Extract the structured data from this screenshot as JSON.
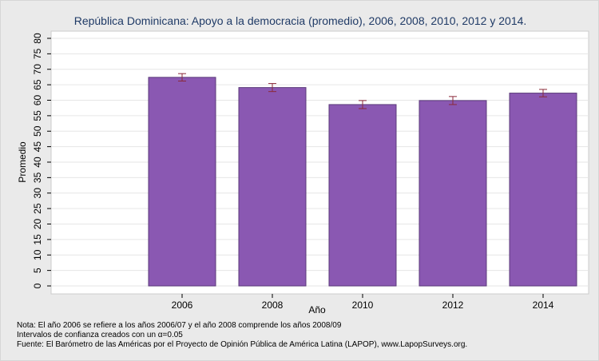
{
  "chart_data": {
    "type": "bar",
    "title": "República Dominicana: Apoyo a la democracia (promedio), 2006, 2008, 2010, 2012 y 2014.",
    "xlabel": "Año",
    "ylabel": "Promedio",
    "categories": [
      "2006",
      "2008",
      "2010",
      "2012",
      "2014"
    ],
    "values": [
      67.4,
      64.1,
      58.6,
      59.9,
      62.3
    ],
    "ci_low": [
      66.2,
      62.8,
      57.3,
      58.6,
      61.1
    ],
    "ci_high": [
      68.6,
      65.4,
      59.9,
      61.2,
      63.5
    ],
    "ylim": [
      0,
      80
    ],
    "yticks": [
      0,
      5,
      10,
      15,
      20,
      25,
      30,
      35,
      40,
      45,
      50,
      55,
      60,
      65,
      70,
      75,
      80
    ],
    "grid": true,
    "bar_color": "#8a58b2",
    "bar_edge_color": "#5b3a7a",
    "errorbar_color": "#8b2a3a",
    "background_color": "#eaeaea",
    "plot_background_color": "#ffffff"
  },
  "notes": [
    "Nota: El año 2006 se refiere a los años 2006/07 y el año 2008 comprende los años 2008/09",
    "Intervalos de confianza creados con un α=0.05",
    "Fuente: El Barómetro de las Américas por el Proyecto de Opinión Pública de América Latina (LAPOP), www.LapopSurveys.org."
  ]
}
